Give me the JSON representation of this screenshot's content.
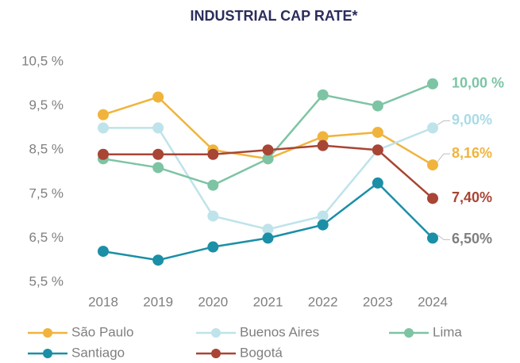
{
  "chart_data": {
    "type": "line",
    "title": "INDUSTRIAL CAP RATE*",
    "categories": [
      "2018",
      "2019",
      "2020",
      "2021",
      "2022",
      "2023",
      "2024"
    ],
    "ylim": [
      5.5,
      10.5
    ],
    "yticks": [
      {
        "value": 10.5,
        "label": "10,5 %"
      },
      {
        "value": 9.5,
        "label": "9,5 %"
      },
      {
        "value": 8.5,
        "label": "8,5 %"
      },
      {
        "value": 7.5,
        "label": "7,5 %"
      },
      {
        "value": 6.5,
        "label": "6,5 %"
      },
      {
        "value": 5.5,
        "label": "5,5 %"
      }
    ],
    "grid": false,
    "series": [
      {
        "name": "São Paulo",
        "color": "#f0b43c",
        "values": [
          9.3,
          9.7,
          8.5,
          8.3,
          8.8,
          8.9,
          8.16
        ],
        "value_labels": [
          null,
          null,
          null,
          null,
          null,
          null,
          "8,16%"
        ],
        "label_color": "#f0b43c"
      },
      {
        "name": "Buenos Aires",
        "color": "#bfe3ea",
        "values": [
          9.0,
          9.0,
          7.0,
          6.7,
          7.0,
          8.5,
          9.0
        ],
        "value_labels": [
          null,
          null,
          null,
          null,
          null,
          null,
          "9,00%"
        ],
        "label_color": "#a9dbe6"
      },
      {
        "name": "Lima",
        "color": "#7dc4a4",
        "values": [
          8.3,
          8.1,
          7.7,
          8.3,
          9.75,
          9.5,
          10.0
        ],
        "value_labels": [
          null,
          null,
          null,
          null,
          null,
          null,
          "10,00 %"
        ],
        "label_color": "#7dc4a4"
      },
      {
        "name": "Santiago",
        "color": "#1a8fa6",
        "values": [
          6.2,
          6.0,
          6.3,
          6.5,
          6.8,
          7.75,
          6.5
        ],
        "value_labels": [
          null,
          null,
          null,
          null,
          null,
          null,
          "6,50%"
        ],
        "label_color": "#7f7f7f"
      },
      {
        "name": "Bogotá",
        "color": "#a84535",
        "values": [
          8.4,
          8.4,
          8.4,
          8.5,
          8.6,
          8.5,
          7.4
        ],
        "value_labels": [
          null,
          null,
          null,
          null,
          null,
          null,
          "7,40%"
        ],
        "label_color": "#a84535"
      }
    ]
  }
}
